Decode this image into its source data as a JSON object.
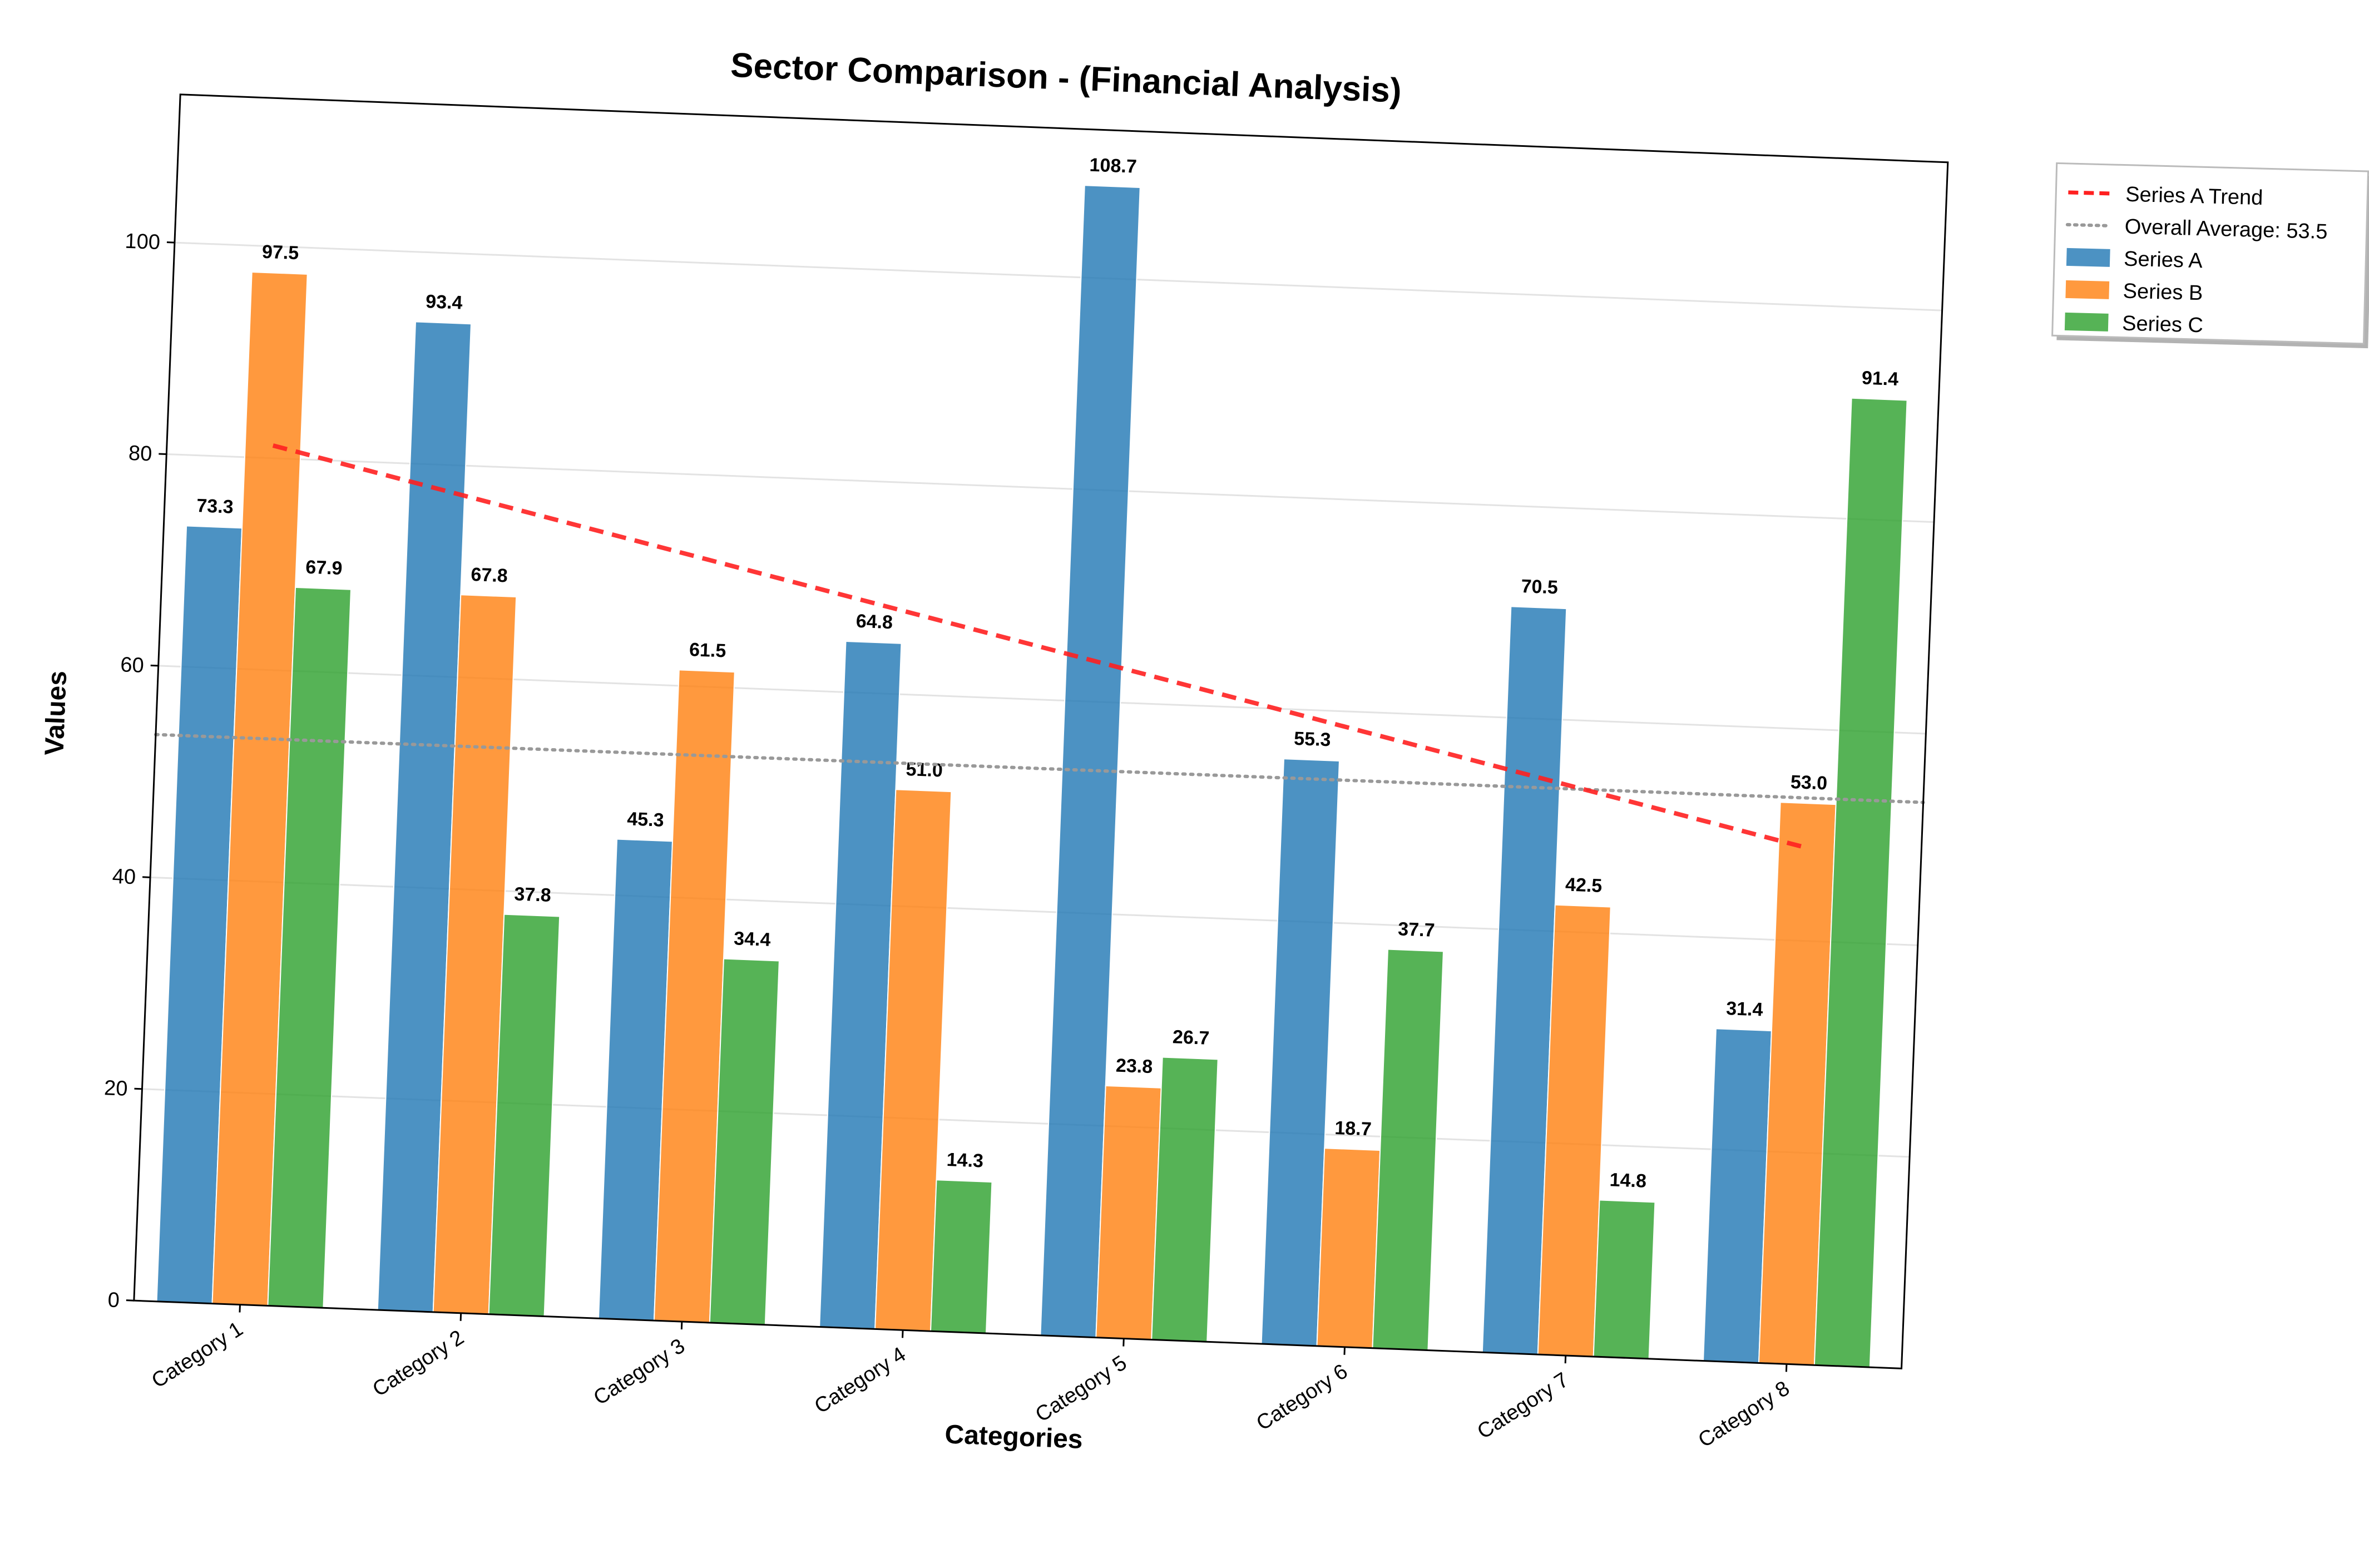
{
  "chart_data": {
    "type": "bar",
    "title": "Sector Comparison - (Financial Analysis)",
    "xlabel": "Categories",
    "ylabel": "Values",
    "categories": [
      "Category 1",
      "Category 2",
      "Category 3",
      "Category 4",
      "Category 5",
      "Category 6",
      "Category 7",
      "Category 8"
    ],
    "series": [
      {
        "name": "Series A",
        "color": "#1f77b4",
        "values": [
          73.3,
          93.4,
          45.3,
          64.8,
          108.7,
          55.3,
          70.5,
          31.4
        ]
      },
      {
        "name": "Series B",
        "color": "#ff7f0e",
        "values": [
          97.5,
          67.8,
          61.5,
          51.0,
          23.8,
          18.7,
          42.5,
          53.0
        ]
      },
      {
        "name": "Series C",
        "color": "#2ca02c",
        "values": [
          67.9,
          37.8,
          34.4,
          14.3,
          26.7,
          37.7,
          14.8,
          91.4
        ]
      }
    ],
    "value_labels": {
      "Series A": [
        "73.3",
        "93.4",
        "45.3",
        "64.8",
        "108.7",
        "55.3",
        "70.5",
        "31.4"
      ],
      "Series B": [
        "97.5",
        "67.8",
        "61.5",
        "51.0",
        "23.8",
        "18.7",
        "42.5",
        "53.0"
      ],
      "Series C": [
        "67.9",
        "37.8",
        "34.4",
        "14.3",
        "26.7",
        "37.7",
        "14.8",
        "91.4"
      ]
    },
    "trend_line": {
      "name": "Series A Trend",
      "color": "#ff2020",
      "style": "dashed",
      "start": 81.2,
      "end": 48.8
    },
    "average_line": {
      "name": "Overall Average: 53.5",
      "value": 53.5,
      "color": "#999999",
      "style": "dotted"
    },
    "ylim": [
      0,
      114
    ],
    "yticks": [
      0,
      20,
      40,
      60,
      80,
      100
    ],
    "ytick_labels": [
      "0",
      "20",
      "40",
      "60",
      "80",
      "100"
    ],
    "grid": "y",
    "legend_position": "outside-top-right",
    "legend_entries": [
      "Series A Trend",
      "Overall Average: 53.5",
      "Series A",
      "Series B",
      "Series C"
    ]
  }
}
